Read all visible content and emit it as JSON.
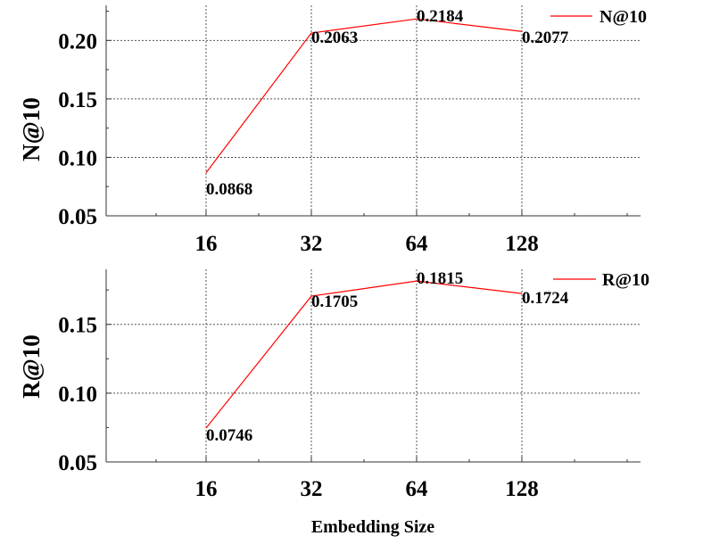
{
  "chart_data": [
    {
      "type": "line",
      "categories": [
        "16",
        "32",
        "64",
        "128"
      ],
      "ylabel": "N@10",
      "yticks": [
        "0.05",
        "0.10",
        "0.15",
        "0.20"
      ],
      "ylim": [
        0.05,
        0.23
      ],
      "grid": true,
      "legend_position": "top-right",
      "series": [
        {
          "name": "N@10",
          "color": "#ff0000",
          "values": [
            0.0868,
            0.2063,
            0.2184,
            0.2077
          ],
          "labels": [
            "0.0868",
            "0.2063",
            "0.2184",
            "0.2077"
          ]
        }
      ]
    },
    {
      "type": "line",
      "categories": [
        "16",
        "32",
        "64",
        "128"
      ],
      "ylabel": "R@10",
      "yticks": [
        "0.05",
        "0.10",
        "0.15"
      ],
      "ylim": [
        0.05,
        0.19
      ],
      "grid": true,
      "legend_position": "top-right",
      "series": [
        {
          "name": "R@10",
          "color": "#ff0000",
          "values": [
            0.0746,
            0.1705,
            0.1815,
            0.1724
          ],
          "labels": [
            "0.0746",
            "0.1705",
            "0.1815",
            "0.1724"
          ]
        }
      ]
    }
  ],
  "xlabel": "Embedding Size"
}
